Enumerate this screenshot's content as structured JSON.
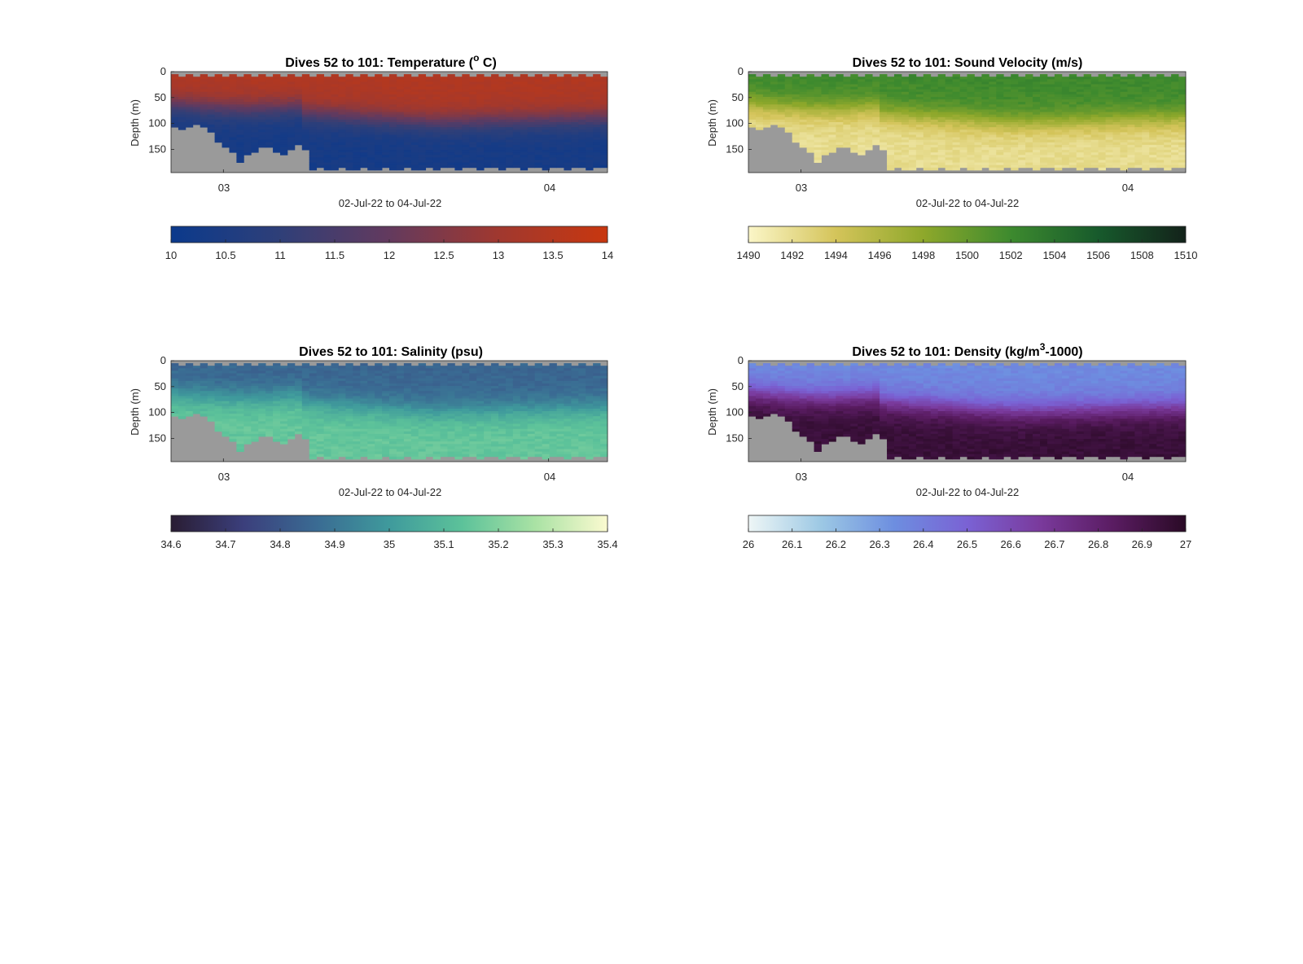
{
  "figure": {
    "background": "#ffffff",
    "bathymetry_color": "#9a9a9a"
  },
  "chart_data": [
    {
      "type": "heatmap",
      "title": {
        "main": "Dives 52 to 101: Temperature (",
        "sup": "o",
        "tail": " C)"
      },
      "xlabel": "02-Jul-22 to 04-Jul-22",
      "ylabel": "Depth (m)",
      "xticks": [
        "03",
        "04"
      ],
      "yticks": [
        0,
        50,
        100,
        150
      ],
      "ylim": [
        0,
        195
      ],
      "grid": false,
      "colorbar": {
        "location": "below",
        "range": [
          10,
          14
        ],
        "ticks": [
          "10",
          "10.5",
          "11",
          "11.5",
          "12",
          "12.5",
          "13",
          "13.5",
          "14"
        ],
        "colors": [
          "#0b3a8c",
          "#2f3f78",
          "#633a5e",
          "#a0382f",
          "#c8370f"
        ]
      },
      "layers": [
        {
          "name": "upper",
          "values": "13.4",
          "description_depths": [
            0,
            60
          ]
        },
        {
          "name": "lower",
          "values": "10.3",
          "description_depths": [
            110,
            195
          ]
        }
      ],
      "variable": "temperature",
      "mixed_layer_value": 13.4,
      "deep_value": 10.3
    },
    {
      "type": "heatmap",
      "title": {
        "main": "Dives 52 to 101: Sound Velocity (m/s)",
        "sup": "",
        "tail": ""
      },
      "xlabel": "02-Jul-22 to 04-Jul-22",
      "ylabel": "Depth (m)",
      "xticks": [
        "03",
        "04"
      ],
      "yticks": [
        0,
        50,
        100,
        150
      ],
      "ylim": [
        0,
        195
      ],
      "grid": false,
      "colorbar": {
        "location": "below",
        "range": [
          1490,
          1510
        ],
        "ticks": [
          "1490",
          "1492",
          "1494",
          "1496",
          "1498",
          "1500",
          "1502",
          "1504",
          "1506",
          "1508",
          "1510"
        ],
        "colors": [
          "#fbf6c8",
          "#d4c45a",
          "#8ea82b",
          "#3d8a2e",
          "#175a2c",
          "#13221a"
        ]
      },
      "variable": "sound_velocity",
      "mixed_layer_value": 1502,
      "deep_value": 1492
    },
    {
      "type": "heatmap",
      "title": {
        "main": "Dives 52 to 101: Salinity (psu)",
        "sup": "",
        "tail": ""
      },
      "xlabel": "02-Jul-22 to 04-Jul-22",
      "ylabel": "Depth (m)",
      "xticks": [
        "03",
        "04"
      ],
      "yticks": [
        0,
        50,
        100,
        150
      ],
      "ylim": [
        0,
        195
      ],
      "grid": false,
      "colorbar": {
        "location": "below",
        "range": [
          34.6,
          35.4
        ],
        "ticks": [
          "34.6",
          "34.7",
          "34.8",
          "34.9",
          "35",
          "35.1",
          "35.2",
          "35.3",
          "35.4"
        ],
        "colors": [
          "#2a1d33",
          "#3b3f7c",
          "#3a6b93",
          "#3f9a9c",
          "#5cc29a",
          "#a9e2a4",
          "#fbfad0"
        ]
      },
      "variable": "salinity",
      "mixed_layer_value": 34.85,
      "deep_value": 35.15
    },
    {
      "type": "heatmap",
      "title": {
        "main": "Dives 52 to 101: Density (kg/m",
        "sup": "3",
        "tail": "-1000)"
      },
      "xlabel": "02-Jul-22 to 04-Jul-22",
      "ylabel": "Depth (m)",
      "xticks": [
        "03",
        "04"
      ],
      "yticks": [
        0,
        50,
        100,
        150
      ],
      "ylim": [
        0,
        195
      ],
      "grid": false,
      "colorbar": {
        "location": "below",
        "range": [
          26,
          27
        ],
        "ticks": [
          "26",
          "26.1",
          "26.2",
          "26.3",
          "26.4",
          "26.5",
          "26.6",
          "26.7",
          "26.8",
          "26.9",
          "27"
        ],
        "colors": [
          "#eef6f6",
          "#9cc8e4",
          "#6d8ee0",
          "#7a62d4",
          "#7a3a9c",
          "#5a1c62",
          "#2a0a26"
        ]
      },
      "variable": "density",
      "mixed_layer_value": 26.35,
      "deep_value": 26.95
    }
  ]
}
